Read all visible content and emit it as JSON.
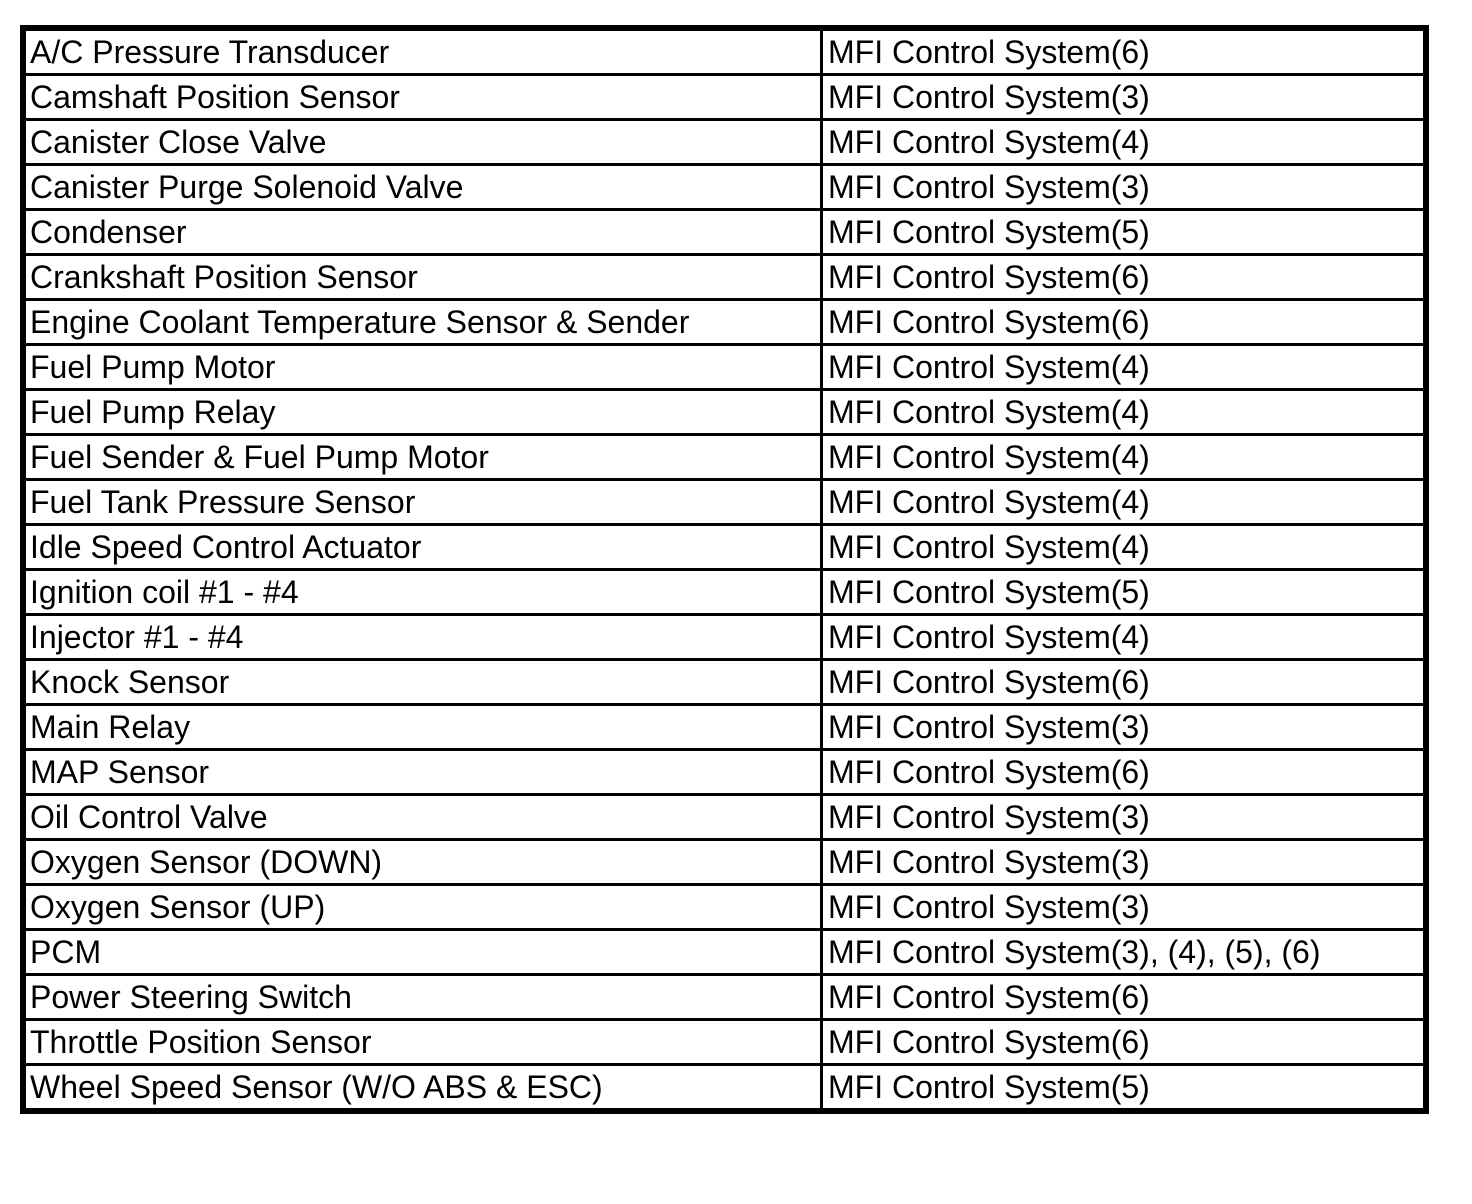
{
  "table": {
    "rows": [
      [
        "A/C Pressure Transducer",
        "MFI Control System(6)"
      ],
      [
        "Camshaft Position Sensor",
        "MFI Control System(3)"
      ],
      [
        "Canister Close Valve",
        "MFI Control System(4)"
      ],
      [
        "Canister Purge Solenoid Valve",
        "MFI Control System(3)"
      ],
      [
        "Condenser",
        "MFI Control System(5)"
      ],
      [
        "Crankshaft Position Sensor",
        "MFI Control System(6)"
      ],
      [
        "Engine Coolant Temperature Sensor & Sender",
        "MFI Control System(6)"
      ],
      [
        "Fuel Pump Motor",
        "MFI Control System(4)"
      ],
      [
        "Fuel Pump Relay",
        "MFI Control System(4)"
      ],
      [
        "Fuel Sender & Fuel Pump Motor",
        "MFI Control System(4)"
      ],
      [
        "Fuel Tank Pressure Sensor",
        "MFI Control System(4)"
      ],
      [
        "Idle Speed Control Actuator",
        "MFI Control System(4)"
      ],
      [
        "Ignition coil #1 - #4",
        "MFI Control System(5)"
      ],
      [
        "Injector #1 - #4",
        "MFI Control System(4)"
      ],
      [
        "Knock Sensor",
        "MFI Control System(6)"
      ],
      [
        "Main Relay",
        "MFI Control System(3)"
      ],
      [
        "MAP Sensor",
        "MFI Control System(6)"
      ],
      [
        "Oil Control Valve",
        "MFI Control System(3)"
      ],
      [
        "Oxygen Sensor (DOWN)",
        "MFI Control System(3)"
      ],
      [
        "Oxygen Sensor (UP)",
        "MFI Control System(3)"
      ],
      [
        "PCM",
        "MFI Control System(3), (4), (5), (6)"
      ],
      [
        "Power Steering Switch",
        "MFI Control System(6)"
      ],
      [
        "Throttle Position Sensor",
        "MFI Control System(6)"
      ],
      [
        "Wheel Speed Sensor (W/O ABS & ESC)",
        "MFI Control System(5)"
      ]
    ]
  }
}
